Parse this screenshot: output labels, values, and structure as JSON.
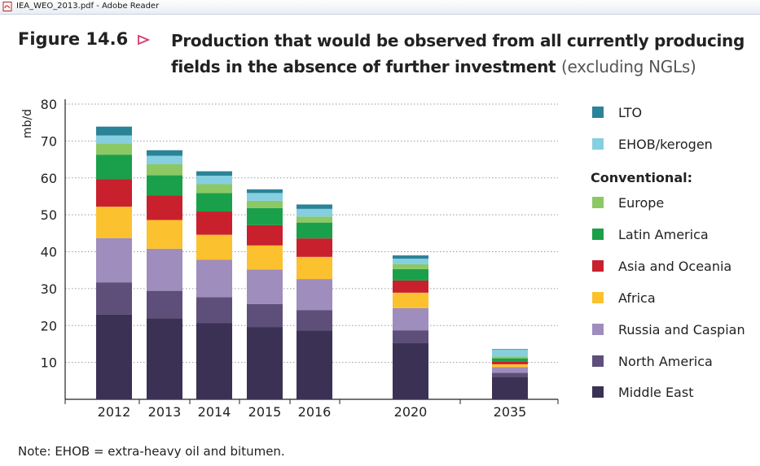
{
  "window": {
    "title": "IEA_WEO_2013.pdf - Adobe Reader",
    "icon": "pdf-file-icon"
  },
  "figure": {
    "label": "Figure 14.6",
    "marker_icon": "triangle-right-icon",
    "title_line1": "Production that would be observed from all currently producing",
    "title_line2": "fields in the absence of further investment",
    "title_suffix": "(excluding NGLs)",
    "note": "Note: EHOB = extra-heavy oil and bitumen."
  },
  "legend": {
    "conventional_heading": "Conventional:"
  },
  "chart_data": {
    "type": "bar",
    "stacked": true,
    "categories": [
      "2012",
      "2013",
      "2014",
      "2015",
      "2016",
      "2020",
      "2035"
    ],
    "ylabel": "mb/d",
    "ylim": [
      0,
      80
    ],
    "yticks": [
      10,
      20,
      30,
      40,
      50,
      60,
      70,
      80
    ],
    "grid": true,
    "legend_position": "right",
    "series": [
      {
        "name": "Middle East",
        "color": "#3b3154",
        "values": [
          23,
          22,
          20.7,
          19.6,
          18.7,
          15.2,
          6.1
        ]
      },
      {
        "name": "North America",
        "color": "#5e4f7a",
        "values": [
          8.7,
          7.4,
          7,
          6.2,
          5.5,
          3.5,
          1.1
        ]
      },
      {
        "name": "Russia and Caspian",
        "color": "#9e8dbd",
        "values": [
          12,
          11.4,
          10.1,
          9.4,
          8.4,
          6,
          1.5
        ]
      },
      {
        "name": "Africa",
        "color": "#fcc12f",
        "values": [
          8.5,
          7.8,
          6.8,
          6.5,
          6,
          4.2,
          0.8
        ]
      },
      {
        "name": "Asia and Oceania",
        "color": "#c8202d",
        "values": [
          7.5,
          6.6,
          6.3,
          5.5,
          5,
          3.3,
          0.8
        ]
      },
      {
        "name": "Latin America",
        "color": "#1aa04a",
        "values": [
          6.6,
          5.5,
          5,
          4.6,
          4.3,
          3.1,
          0.8
        ]
      },
      {
        "name": "Europe",
        "color": "#8cc864",
        "values": [
          3,
          3,
          2.4,
          2,
          1.6,
          1.3,
          0.5
        ]
      },
      {
        "name": "EHOB/kerogen",
        "color": "#86cfe0",
        "values": [
          2.2,
          2.3,
          2.3,
          2.1,
          2.1,
          1.5,
          1.8
        ]
      },
      {
        "name": "LTO",
        "color": "#2b8398",
        "values": [
          2.4,
          1.5,
          1.2,
          1.0,
          1.2,
          0.9,
          0.2
        ]
      }
    ],
    "legend_order": [
      "LTO",
      "EHOB/kerogen",
      "Europe",
      "Latin America",
      "Asia and Oceania",
      "Africa",
      "Russia and Caspian",
      "North America",
      "Middle East"
    ]
  }
}
